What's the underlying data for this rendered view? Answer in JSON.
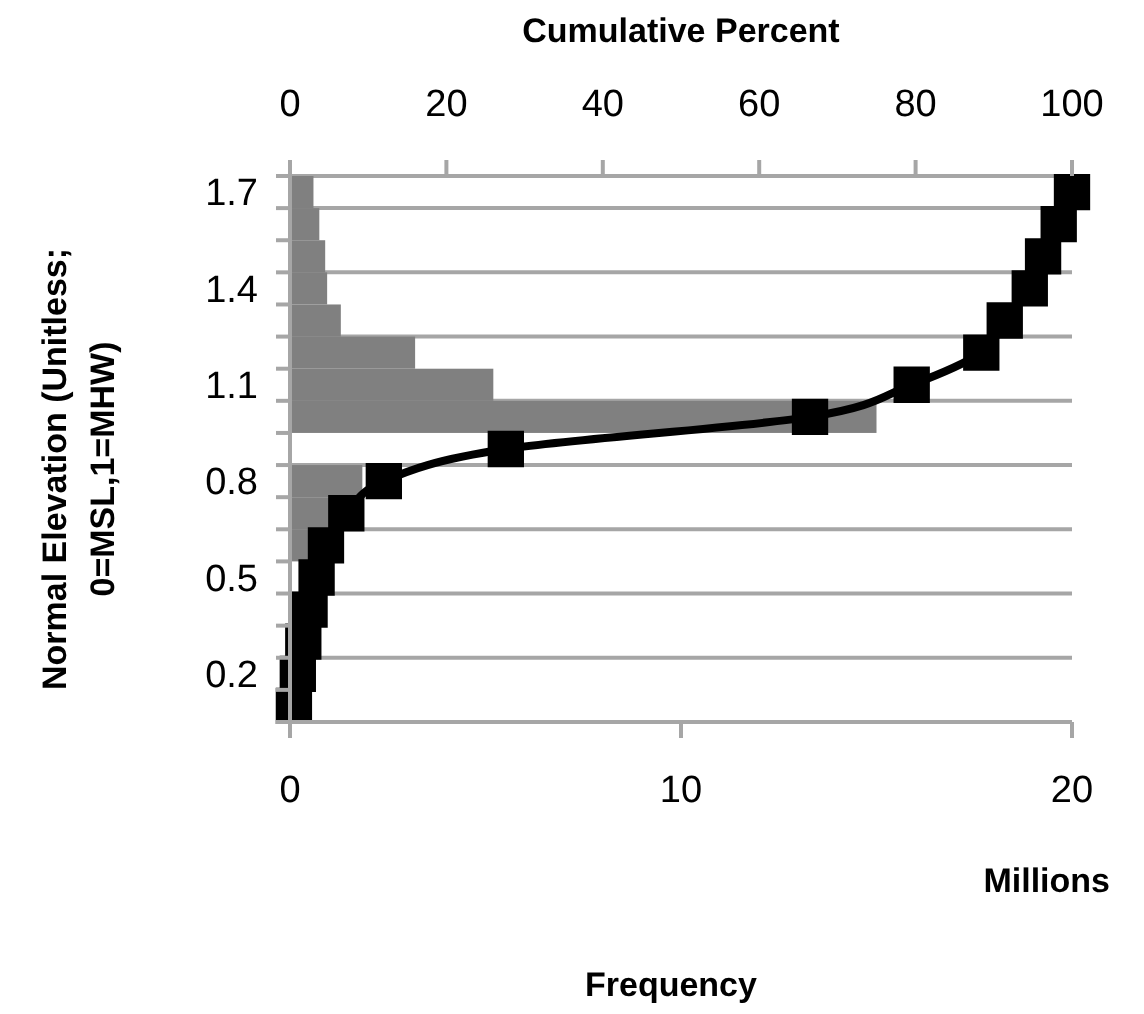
{
  "chart_data": {
    "type": "bar",
    "orientation": "horizontal",
    "x2label": "Cumulative Percent",
    "xlabel": "Frequency",
    "ylabel": "Normal Elevation (Unitless; 0=MSL,1=MHW)",
    "annotations": [
      "Millions"
    ],
    "categories": [
      "1.7",
      null,
      null,
      "1.4",
      null,
      null,
      "1.1",
      null,
      null,
      "0.8",
      null,
      null,
      "0.5",
      null,
      null,
      "0.2",
      null
    ],
    "xlim": [
      0,
      20
    ],
    "xticks": [
      0,
      10,
      20
    ],
    "x2lim": [
      0,
      100
    ],
    "x2ticks": [
      0,
      20,
      40,
      60,
      80,
      100
    ],
    "grid": true,
    "marker": "square",
    "series": [
      {
        "color": "#808080",
        "values": [
          0.6,
          0.75,
          0.9,
          0.95,
          1.3,
          3.2,
          5.2,
          15,
          null,
          1.85,
          1.0,
          0.5,
          null,
          null,
          null,
          null,
          null
        ]
      },
      {
        "type": "line",
        "axis": "x2",
        "color": "#000000",
        "values": [
          100,
          98.3,
          96.3,
          94.6,
          91.4,
          88.4,
          79.5,
          66.5,
          27.6,
          12,
          7.2,
          4.6,
          3.4,
          2.5,
          1.7,
          1,
          0.5
        ]
      }
    ]
  }
}
